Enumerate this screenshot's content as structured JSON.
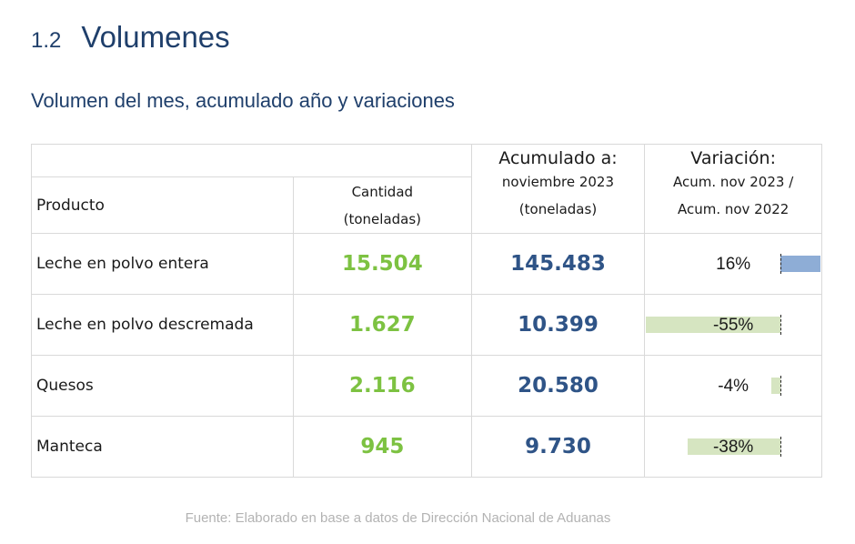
{
  "section": {
    "number": "1.2",
    "title": "Volumenes"
  },
  "subtitle": "Volumen del mes, acumulado año y variaciones",
  "table": {
    "headers": {
      "producto": "Producto",
      "cantidad_1": "Cantidad",
      "cantidad_2": "(toneladas)",
      "acumulado_title": "Acumulado a:",
      "acumulado_1": "noviembre 2023",
      "acumulado_2": "(toneladas)",
      "variacion_title": "Variación:",
      "variacion_1": "Acum. nov 2023 /",
      "variacion_2": "Acum. nov 2022"
    },
    "rows": [
      {
        "producto": "Leche en polvo entera",
        "cantidad": "15.504",
        "acumulado": "145.483",
        "variacion": "16%",
        "variacion_value": 16
      },
      {
        "producto": "Leche en polvo descremada",
        "cantidad": "1.627",
        "acumulado": "10.399",
        "variacion": "-55%",
        "variacion_value": -55
      },
      {
        "producto": "Quesos",
        "cantidad": "2.116",
        "acumulado": "20.580",
        "variacion": "-4%",
        "variacion_value": -4
      },
      {
        "producto": "Manteca",
        "cantidad": "945",
        "acumulado": "9.730",
        "variacion": "-38%",
        "variacion_value": -38
      }
    ]
  },
  "colors": {
    "positive_bar": "#8eadd6",
    "negative_bar": "#d6e5c1",
    "quantity": "#7dc242",
    "accumulated": "#2f5487"
  },
  "footer": "Fuente: Elaborado en base a datos de Dirección Nacional de Aduanas"
}
